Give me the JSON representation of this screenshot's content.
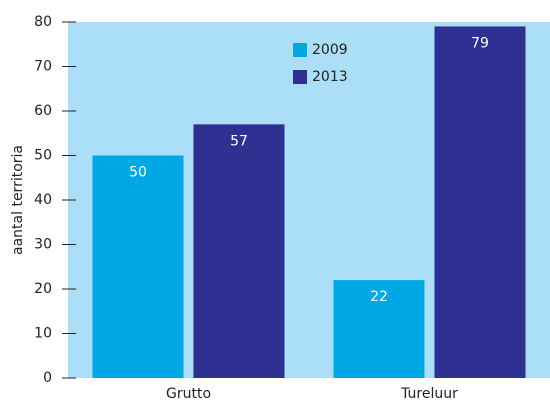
{
  "chart_data": {
    "type": "bar",
    "categories": [
      "Grutto",
      "Tureluur"
    ],
    "series": [
      {
        "name": "2009",
        "color": "#00a7e5",
        "values": [
          50,
          22
        ]
      },
      {
        "name": "2013",
        "color": "#2e3192",
        "values": [
          57,
          79
        ]
      }
    ],
    "y_label": "aantal territoria",
    "ylim": [
      0,
      80
    ],
    "yticks": [
      0,
      10,
      20,
      30,
      40,
      50,
      60,
      70,
      80
    ],
    "legend": "top",
    "background": "#aadff7"
  }
}
